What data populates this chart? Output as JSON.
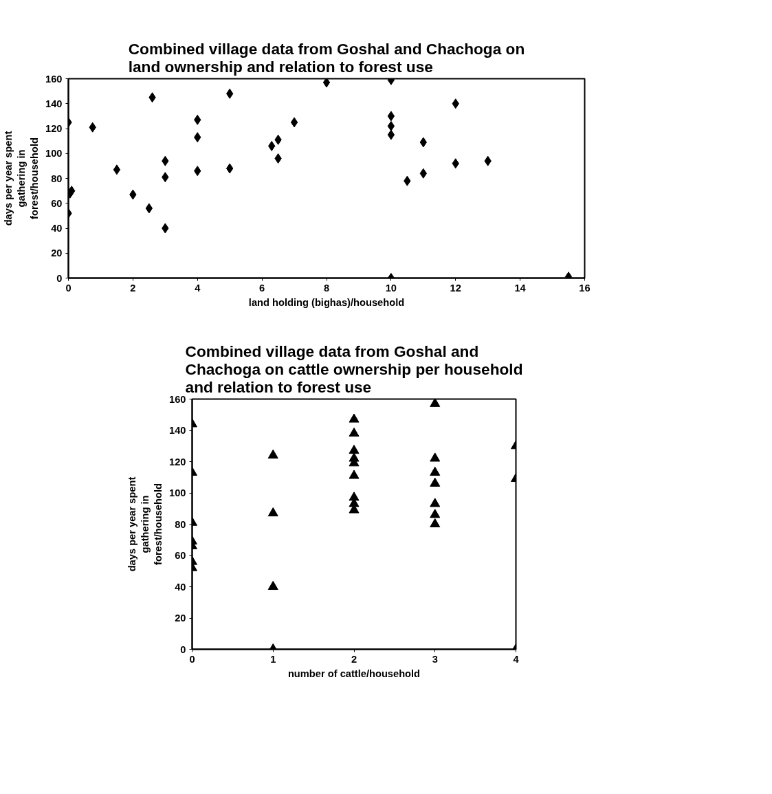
{
  "chart_data": [
    {
      "type": "scatter",
      "title": "Combined village data from Goshal and Chachoga on\nland ownership and relation to forest use",
      "xlabel": "land holding (bighas)/household",
      "ylabel": "days per year spent\ngathering in\nforest/household",
      "marker": "diamond",
      "color": "#000000",
      "grid": false,
      "x": [
        0,
        0,
        0.1,
        0.05,
        0.75,
        1.5,
        2,
        2.5,
        2.6,
        3,
        3,
        3,
        4,
        4,
        4,
        5,
        5,
        6.3,
        6.5,
        6.5,
        7,
        8,
        10,
        10,
        10,
        10,
        10,
        10.5,
        11,
        11,
        12,
        12,
        13,
        15.5
      ],
      "values": [
        125,
        52,
        70,
        68,
        121,
        87,
        67,
        56,
        145,
        94,
        81,
        40,
        127,
        113,
        86,
        148,
        88,
        106,
        111,
        96,
        125,
        157,
        159,
        130,
        122,
        115,
        0,
        78,
        109,
        84,
        140,
        92,
        94,
        1
      ],
      "xlim": [
        0,
        16
      ],
      "ylim": [
        0,
        160
      ],
      "xticks": [
        0,
        2,
        4,
        6,
        8,
        10,
        12,
        14,
        16
      ],
      "yticks": [
        0,
        20,
        40,
        60,
        80,
        100,
        120,
        140,
        160
      ]
    },
    {
      "type": "scatter",
      "title": "Combined village data from Goshal and\nChachoga on cattle ownership per household\nand relation to forest use",
      "xlabel": "number of cattle/household",
      "ylabel": "days per year spent\ngathering in\nforest/household",
      "marker": "triangle",
      "color": "#000000",
      "grid": false,
      "x": [
        0,
        0,
        0,
        0,
        0,
        0,
        0,
        1,
        1,
        1,
        1,
        2,
        2,
        2,
        2,
        2,
        2,
        2,
        2,
        2,
        3,
        3,
        3,
        3,
        3,
        3,
        3,
        4,
        4,
        4
      ],
      "values": [
        144,
        113,
        81,
        69,
        66,
        56,
        52,
        124,
        87,
        40,
        0,
        147,
        138,
        127,
        122,
        119,
        111,
        97,
        93,
        89,
        157,
        122,
        113,
        106,
        93,
        86,
        80,
        130,
        109,
        0
      ],
      "xlim": [
        0,
        4
      ],
      "ylim": [
        0,
        160
      ],
      "xticks": [
        0,
        1,
        2,
        3,
        4
      ],
      "yticks": [
        0,
        20,
        40,
        60,
        80,
        100,
        120,
        140,
        160
      ]
    }
  ]
}
